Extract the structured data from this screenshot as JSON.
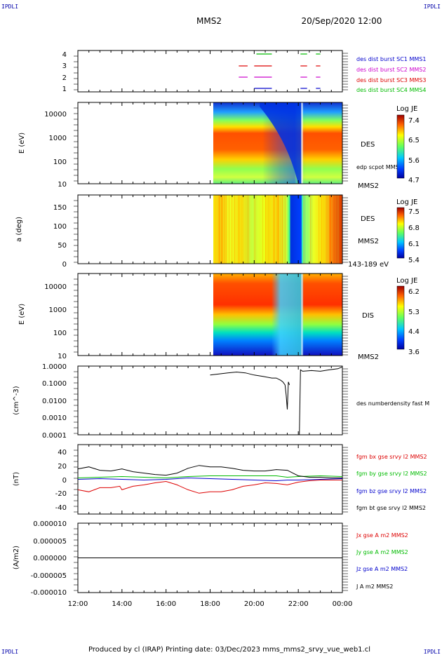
{
  "corner_labels": {
    "tl": "IPDLI",
    "tr": "IPDLI",
    "bl": "IPDLI",
    "br": "IPDLI"
  },
  "header": {
    "spacecraft": "MMS2",
    "datetime": "20/Sep/2020 12:00"
  },
  "footer": {
    "text": "Produced by cl (IRAP)   Printing date: 03/Dec/2023   mms_mms2_srvy_vue_web1.cl"
  },
  "x_axis": {
    "ticks": [
      "12:00",
      "14:00",
      "16:00",
      "18:00",
      "20:00",
      "22:00",
      "00:00"
    ],
    "range_hours": [
      12,
      24
    ]
  },
  "chart_data": [
    {
      "type": "timeline",
      "yticks": [
        "4",
        "3",
        "2",
        "1"
      ],
      "legend": [
        {
          "label": "des dist burst SC1 MMS1",
          "color": "#0000cc"
        },
        {
          "label": "des dist burst SC2 MMS2",
          "color": "#cc00cc"
        },
        {
          "label": "des dist burst SC3 MMS3",
          "color": "#dd0000"
        },
        {
          "label": "des dist burst SC4 MMS4",
          "color": "#00bb00"
        }
      ],
      "segments": [
        {
          "level": 4,
          "color": "#00bb00",
          "x": [
            [
              20.1,
              20.8
            ],
            [
              22.1,
              22.4
            ],
            [
              22.8,
              23.0
            ]
          ]
        },
        {
          "level": 3,
          "color": "#dd0000",
          "x": [
            [
              19.3,
              19.7
            ],
            [
              20.0,
              20.8
            ],
            [
              22.1,
              22.4
            ],
            [
              22.8,
              23.0
            ]
          ]
        },
        {
          "level": 2,
          "color": "#cc00cc",
          "x": [
            [
              19.3,
              19.7
            ],
            [
              20.0,
              20.8
            ],
            [
              22.1,
              22.4
            ],
            [
              22.8,
              23.0
            ]
          ]
        },
        {
          "level": 1,
          "color": "#0000cc",
          "x": [
            [
              20.0,
              20.8
            ],
            [
              22.1,
              22.4
            ],
            [
              22.8,
              23.0
            ]
          ]
        }
      ]
    },
    {
      "type": "heatmap",
      "ylabel": "E (eV)",
      "yticks": [
        "10000",
        "1000",
        "100",
        "10"
      ],
      "label": "DES",
      "sublabel": "MMS2",
      "note": "edp scpot MMS2",
      "colorbar": {
        "title": "Log JE",
        "ticks": [
          "7.4",
          "6.5",
          "5.6",
          "4.7"
        ]
      },
      "data_start_hour": 18.0
    },
    {
      "type": "heatmap",
      "ylabel": "a (deg)",
      "yticks": [
        "150",
        "100",
        "50",
        "0"
      ],
      "label": "DES",
      "sublabel": "MMS2",
      "note": "143-189 eV",
      "colorbar": {
        "title": "Log JE",
        "ticks": [
          "7.5",
          "6.8",
          "6.1",
          "5.4"
        ]
      },
      "data_start_hour": 18.0
    },
    {
      "type": "heatmap",
      "ylabel": "E (eV)",
      "yticks": [
        "10000",
        "1000",
        "100",
        "10"
      ],
      "label": "DIS",
      "sublabel": "MMS2",
      "colorbar": {
        "title": "Log JE",
        "ticks": [
          "6.2",
          "5.3",
          "4.4",
          "3.6"
        ]
      },
      "data_start_hour": 18.0
    },
    {
      "type": "line",
      "ylabel": "(cm^-3)",
      "yticks": [
        "1.0000",
        "0.1000",
        "0.0100",
        "0.0010",
        "0.0001"
      ],
      "ylim_log10": [
        -4,
        0
      ],
      "series": [
        {
          "name": "des numberdensity fast M",
          "color": "#000000",
          "x": [
            18.0,
            18.4,
            18.8,
            19.2,
            19.6,
            20.0,
            20.4,
            20.8,
            21.0,
            21.2,
            21.3,
            21.4,
            21.45,
            21.5,
            21.55,
            21.6,
            22.0,
            22.05,
            22.1,
            22.2,
            22.6,
            23.0,
            23.4,
            23.8,
            24.0
          ],
          "y": [
            0.3,
            0.35,
            0.4,
            0.45,
            0.4,
            0.3,
            0.25,
            0.2,
            0.2,
            0.15,
            0.12,
            0.08,
            0.02,
            0.003,
            0.12,
            0.08,
            null,
            0.0001,
            0.6,
            0.5,
            0.55,
            0.5,
            0.6,
            0.7,
            0.9
          ]
        }
      ]
    },
    {
      "type": "line",
      "ylabel": "(nT)",
      "yticks": [
        "40",
        "20",
        "0",
        "-20",
        "-40"
      ],
      "ylim": [
        -50,
        50
      ],
      "series": [
        {
          "name": "fgm bx gse srvy l2 MMS2",
          "color": "#dd0000",
          "x": [
            12.0,
            12.5,
            13.0,
            13.5,
            13.9,
            14.0,
            14.5,
            15.0,
            15.5,
            16.0,
            16.5,
            17.0,
            17.5,
            18.0,
            18.5,
            19.0,
            19.5,
            20.0,
            20.5,
            21.0,
            21.5,
            22.0,
            22.5,
            23.0,
            23.5,
            24.0
          ],
          "y": [
            -15,
            -18,
            -12,
            -12,
            -10,
            -15,
            -10,
            -8,
            -5,
            -3,
            -8,
            -15,
            -20,
            -18,
            -18,
            -15,
            -10,
            -8,
            -5,
            -6,
            -8,
            -4,
            -2,
            -1,
            -1,
            -1
          ]
        },
        {
          "name": "fgm by gse srvy l2 MMS2",
          "color": "#00bb00",
          "x": [
            12.0,
            13.0,
            14.0,
            15.0,
            16.0,
            17.0,
            18.0,
            19.0,
            20.0,
            21.0,
            21.5,
            22.0,
            23.0,
            24.0
          ],
          "y": [
            2,
            3,
            4,
            3,
            2,
            4,
            5,
            5,
            5,
            5,
            3,
            4,
            5,
            4
          ]
        },
        {
          "name": "fgm bz gse srvy l2 MMS2",
          "color": "#0000cc",
          "x": [
            12.0,
            13.0,
            14.0,
            15.0,
            16.0,
            17.0,
            18.0,
            19.0,
            20.0,
            21.0,
            21.5,
            22.0,
            23.0,
            24.0
          ],
          "y": [
            0,
            1,
            0,
            -1,
            0,
            2,
            1,
            0,
            -1,
            -2,
            -1,
            -1,
            0,
            1
          ]
        },
        {
          "name": "fgm bt gse srvy l2 MMS2",
          "color": "#000000",
          "x": [
            12.0,
            12.5,
            13.0,
            13.5,
            14.0,
            14.5,
            15.0,
            15.5,
            16.0,
            16.5,
            17.0,
            17.5,
            18.0,
            18.5,
            19.0,
            19.5,
            20.0,
            20.5,
            21.0,
            21.5,
            22.0,
            22.5,
            23.0,
            23.5,
            24.0
          ],
          "y": [
            15,
            18,
            13,
            12,
            15,
            11,
            9,
            7,
            6,
            9,
            16,
            20,
            18,
            18,
            16,
            13,
            12,
            12,
            14,
            13,
            5,
            3,
            3,
            2,
            2
          ]
        }
      ]
    },
    {
      "type": "line",
      "ylabel": "(A/m2)",
      "yticks": [
        "0.000010",
        "0.000005",
        "0.000000",
        "-0.000005",
        "-0.000010"
      ],
      "ylim": [
        -1e-05,
        1e-05
      ],
      "series": [
        {
          "name": "Jx gse A m2 MMS2",
          "color": "#dd0000",
          "x": [
            12.0,
            24.0
          ],
          "y": [
            0.0,
            0.0
          ]
        },
        {
          "name": "Jy gse A m2 MMS2",
          "color": "#00bb00",
          "x": [
            12.0,
            24.0
          ],
          "y": [
            0.0,
            0.0
          ]
        },
        {
          "name": "Jz gse A m2 MMS2",
          "color": "#0000cc",
          "x": [
            12.0,
            24.0
          ],
          "y": [
            0.0,
            0.0
          ]
        },
        {
          "name": "J A m2 MMS2",
          "color": "#000000",
          "x": [
            12.0,
            24.0
          ],
          "y": [
            0.0,
            0.0
          ]
        }
      ]
    }
  ]
}
